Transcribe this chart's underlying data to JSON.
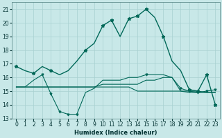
{
  "xlabel": "Humidex (Indice chaleur)",
  "bg_color": "#c8e8e8",
  "grid_color": "#a8d0d0",
  "line_color": "#006858",
  "xlim": [
    -0.5,
    23.5
  ],
  "ylim": [
    13,
    21.5
  ],
  "yticks": [
    13,
    14,
    15,
    16,
    17,
    18,
    19,
    20,
    21
  ],
  "xticks": [
    0,
    1,
    2,
    3,
    4,
    5,
    6,
    7,
    8,
    9,
    10,
    11,
    12,
    13,
    14,
    15,
    16,
    17,
    18,
    19,
    20,
    21,
    22,
    23
  ],
  "s0": [
    16.8,
    16.5,
    16.3,
    16.8,
    16.5,
    16.2,
    16.5,
    17.2,
    18.0,
    18.5,
    19.8,
    20.2,
    19.0,
    20.3,
    20.5,
    21.0,
    20.4,
    19.0,
    17.2,
    16.5,
    15.1,
    15.0,
    16.2,
    14.0
  ],
  "s0_mark": [
    0,
    2,
    4,
    8,
    10,
    11,
    13,
    14,
    15,
    17,
    20,
    21,
    22,
    23
  ],
  "s1": [
    15.3,
    15.3,
    15.3,
    15.3,
    15.3,
    15.3,
    15.3,
    15.3,
    15.3,
    15.3,
    15.5,
    15.5,
    15.5,
    15.5,
    15.5,
    15.8,
    15.8,
    16.0,
    16.0,
    15.0,
    15.0,
    15.0,
    14.9,
    14.9
  ],
  "s2": [
    15.3,
    15.3,
    15.8,
    16.2,
    14.8,
    13.5,
    13.3,
    13.3,
    14.9,
    15.2,
    15.8,
    15.8,
    15.8,
    16.0,
    16.0,
    16.2,
    16.2,
    16.2,
    16.0,
    15.2,
    15.0,
    14.9,
    15.0,
    15.1
  ],
  "s2_mark": [
    3,
    4,
    5,
    6,
    7,
    15,
    19,
    20,
    21,
    22,
    23
  ],
  "s3": [
    15.3,
    15.3,
    15.3,
    15.3,
    15.3,
    15.3,
    15.3,
    15.3,
    15.3,
    15.3,
    15.3,
    15.3,
    15.3,
    15.3,
    15.0,
    15.0,
    15.0,
    15.0,
    15.0,
    15.0,
    14.9,
    14.9,
    14.9,
    14.9
  ],
  "xlabel_fontsize": 6.0,
  "tick_fontsize": 5.5
}
